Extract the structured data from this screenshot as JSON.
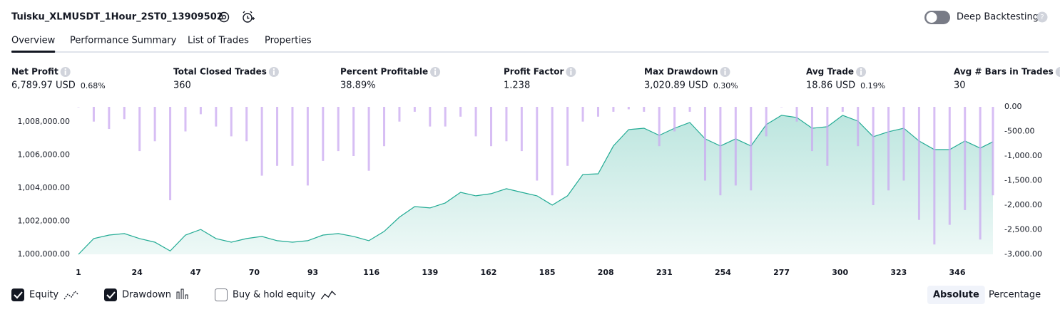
{
  "header": {
    "title": "Tuisku_XLMUSDT_1Hour_2ST0_13909502",
    "toggle_label": "Deep Backtesting"
  },
  "tabs": [
    "Overview",
    "Performance Summary",
    "List of Trades",
    "Properties"
  ],
  "active_tab": 0,
  "metrics": [
    {
      "label": "Net Profit",
      "value": "6,789.97 USD",
      "percent": "0.68%",
      "color": "#089981"
    },
    {
      "label": "Total Closed Trades",
      "value": "360",
      "color": "#131722"
    },
    {
      "label": "Percent Profitable",
      "value": "38.89%",
      "color": "#089981"
    },
    {
      "label": "Profit Factor",
      "value": "1.238",
      "color": "#089981"
    },
    {
      "label": "Max Drawdown",
      "value": "3,020.89 USD",
      "percent": "0.30%",
      "color": "#f23645"
    },
    {
      "label": "Avg Trade",
      "value": "18.86 USD",
      "percent": "0.19%",
      "color": "#089981"
    },
    {
      "label": "Avg # Bars in Trades",
      "value": "30",
      "color": "#131722"
    }
  ],
  "chart_data": {
    "type": "line",
    "x": [
      1,
      7,
      13,
      19,
      25,
      31,
      37,
      43,
      49,
      55,
      61,
      67,
      73,
      79,
      85,
      91,
      97,
      103,
      109,
      115,
      121,
      127,
      133,
      139,
      145,
      151,
      157,
      163,
      169,
      175,
      181,
      187,
      193,
      199,
      205,
      211,
      217,
      223,
      229,
      235,
      241,
      247,
      253,
      259,
      265,
      271,
      277,
      283,
      289,
      295,
      301,
      307,
      313,
      319,
      325,
      331,
      337,
      343,
      349,
      355,
      360
    ],
    "series": [
      {
        "name": "Equity",
        "type": "line",
        "color": "#22ab94",
        "checked": true,
        "values": [
          1000000,
          1000950,
          1001160,
          1001250,
          1000950,
          1000730,
          1000200,
          1001160,
          1001500,
          1000950,
          1000730,
          1000950,
          1001080,
          1000820,
          1000730,
          1000820,
          1001160,
          1001250,
          1001080,
          1000820,
          1001380,
          1002240,
          1002880,
          1002800,
          1003100,
          1003740,
          1003530,
          1003660,
          1003960,
          1003740,
          1003530,
          1002970,
          1003530,
          1004820,
          1004860,
          1006540,
          1007530,
          1007610,
          1007180,
          1007610,
          1007960,
          1006970,
          1006540,
          1006970,
          1006540,
          1007830,
          1008390,
          1008260,
          1007610,
          1007700,
          1008390,
          1008040,
          1007100,
          1007400,
          1007610,
          1006840,
          1006320,
          1006320,
          1006840,
          1006410,
          1006790
        ]
      },
      {
        "name": "Drawdown",
        "type": "bar",
        "axis": "y2",
        "color": "#c9a8f0",
        "checked": true,
        "values": [
          0,
          -300,
          -450,
          -250,
          -900,
          -700,
          -1900,
          -500,
          -150,
          -400,
          -600,
          -700,
          -1400,
          -1200,
          -1200,
          -1600,
          -1100,
          -900,
          -1000,
          -1300,
          -800,
          -300,
          -100,
          -400,
          -400,
          -200,
          -600,
          -800,
          -700,
          -900,
          -1500,
          -1800,
          -1200,
          -300,
          -200,
          -100,
          -50,
          -100,
          -800,
          -500,
          -100,
          -1500,
          -1800,
          -1600,
          -1700,
          -600,
          0,
          -300,
          -900,
          -1200,
          -100,
          -800,
          -2000,
          -1700,
          -1500,
          -2300,
          -2800,
          -2400,
          -2100,
          -2700,
          -1800
        ]
      },
      {
        "name": "Buy & hold equity",
        "type": "line",
        "checked": false
      }
    ],
    "xlim": [
      1,
      360
    ],
    "xticks": [
      1,
      24,
      47,
      70,
      93,
      116,
      139,
      162,
      185,
      208,
      231,
      254,
      277,
      300,
      323,
      346
    ],
    "ylim": [
      1000000,
      1008900
    ],
    "yticks": [
      {
        "value": 1000000,
        "label": "1,000,000.00"
      },
      {
        "value": 1002000,
        "label": "1,002,000.00"
      },
      {
        "value": 1004000,
        "label": "1,004,000.00"
      },
      {
        "value": 1006000,
        "label": "1,006,000.00"
      },
      {
        "value": 1008000,
        "label": "1,008,000.00"
      }
    ],
    "y2lim": [
      -3000,
      0
    ],
    "y2ticks": [
      {
        "value": 0,
        "label": "0.00"
      },
      {
        "value": -500,
        "label": "-500.00"
      },
      {
        "value": -1000,
        "label": "-1,000.00"
      },
      {
        "value": -1500,
        "label": "-1,500.00"
      },
      {
        "value": -2000,
        "label": "-2,000.00"
      },
      {
        "value": -2500,
        "label": "-2,500.00"
      },
      {
        "value": -3000,
        "label": "-3,000.00"
      }
    ]
  },
  "view_buttons": [
    "Absolute",
    "Percentage"
  ],
  "active_view": 0
}
